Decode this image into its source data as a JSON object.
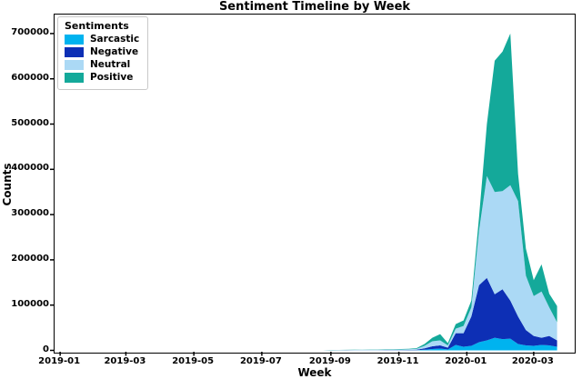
{
  "title": "Sentiment Timeline by Week",
  "legend": {
    "title": "Sentiments",
    "items": [
      {
        "label": "Sarcastic",
        "color": "#00b3ef"
      },
      {
        "label": "Negative",
        "color": "#0d2fb5"
      },
      {
        "label": "Neutral",
        "color": "#abd9f5"
      },
      {
        "label": "Positive",
        "color": "#14a99a"
      }
    ]
  },
  "axes": {
    "x_label": "Week",
    "y_label": "Counts",
    "x_ticks": [
      {
        "label": "2019-01",
        "day": 0
      },
      {
        "label": "2019-03",
        "day": 59
      },
      {
        "label": "2019-05",
        "day": 120
      },
      {
        "label": "2019-07",
        "day": 181
      },
      {
        "label": "2019-09",
        "day": 243
      },
      {
        "label": "2019-11",
        "day": 304
      },
      {
        "label": "2020-01",
        "day": 365
      },
      {
        "label": "2020-03",
        "day": 425
      }
    ],
    "y_ticks": [
      {
        "label": "0",
        "value": 0
      },
      {
        "label": "100000",
        "value": 100000
      },
      {
        "label": "200000",
        "value": 200000
      },
      {
        "label": "300000",
        "value": 300000
      },
      {
        "label": "400000",
        "value": 400000
      },
      {
        "label": "500000",
        "value": 500000
      },
      {
        "label": "600000",
        "value": 600000
      },
      {
        "label": "700000",
        "value": 700000
      }
    ],
    "x_range_days": [
      -5,
      461
    ],
    "y_range": [
      0,
      742000
    ]
  },
  "chart_data": {
    "type": "area",
    "stacked": true,
    "title": "Sentiment Timeline by Week",
    "xlabel": "Week",
    "ylabel": "Counts",
    "ylim": [
      0,
      742000
    ],
    "grid": false,
    "legend_position": "upper left",
    "x_start_date": "2019-01-06",
    "x_step_days": 7,
    "dates": [
      "2019-01-06",
      "2019-01-13",
      "2019-01-20",
      "2019-01-27",
      "2019-02-03",
      "2019-02-10",
      "2019-02-17",
      "2019-02-24",
      "2019-03-03",
      "2019-03-10",
      "2019-03-17",
      "2019-03-24",
      "2019-03-31",
      "2019-04-07",
      "2019-04-14",
      "2019-04-21",
      "2019-04-28",
      "2019-05-05",
      "2019-05-12",
      "2019-05-19",
      "2019-05-26",
      "2019-06-02",
      "2019-06-09",
      "2019-06-16",
      "2019-06-23",
      "2019-06-30",
      "2019-07-07",
      "2019-07-14",
      "2019-07-21",
      "2019-07-28",
      "2019-08-04",
      "2019-08-11",
      "2019-08-18",
      "2019-08-25",
      "2019-09-01",
      "2019-09-08",
      "2019-09-15",
      "2019-09-22",
      "2019-09-29",
      "2019-10-06",
      "2019-10-13",
      "2019-10-20",
      "2019-10-27",
      "2019-11-03",
      "2019-11-10",
      "2019-11-17",
      "2019-11-24",
      "2019-12-01",
      "2019-12-08",
      "2019-12-15",
      "2019-12-22",
      "2019-12-29",
      "2020-01-05",
      "2020-01-12",
      "2020-01-19",
      "2020-01-26",
      "2020-02-02",
      "2020-02-09",
      "2020-02-16",
      "2020-02-23",
      "2020-03-01",
      "2020-03-08",
      "2020-03-15",
      "2020-03-22"
    ],
    "series": [
      {
        "name": "Sarcastic",
        "color": "#00b3ef",
        "values": [
          0,
          0,
          0,
          0,
          0,
          0,
          0,
          0,
          0,
          0,
          0,
          0,
          0,
          0,
          0,
          0,
          0,
          0,
          0,
          0,
          0,
          0,
          0,
          0,
          0,
          0,
          0,
          0,
          0,
          0,
          0,
          0,
          0,
          0,
          100,
          100,
          100,
          150,
          150,
          200,
          200,
          250,
          250,
          300,
          350,
          500,
          1500,
          3000,
          4000,
          2000,
          12000,
          8000,
          10000,
          18000,
          22000,
          28000,
          25000,
          26000,
          14000,
          11000,
          10000,
          12000,
          11000,
          8000
        ]
      },
      {
        "name": "Negative",
        "color": "#0d2fb5",
        "values": [
          0,
          0,
          0,
          0,
          0,
          0,
          0,
          0,
          0,
          0,
          0,
          0,
          0,
          0,
          0,
          0,
          0,
          0,
          0,
          0,
          0,
          0,
          0,
          0,
          0,
          0,
          0,
          0,
          0,
          0,
          0,
          0,
          0,
          0,
          200,
          200,
          300,
          300,
          350,
          400,
          400,
          500,
          500,
          600,
          700,
          1000,
          3000,
          6000,
          7000,
          4000,
          26000,
          30000,
          65000,
          126000,
          138000,
          96000,
          110000,
          84000,
          61000,
          34000,
          22000,
          16000,
          21000,
          14000
        ]
      },
      {
        "name": "Neutral",
        "color": "#abd9f5",
        "values": [
          0,
          0,
          0,
          0,
          0,
          0,
          0,
          0,
          0,
          0,
          0,
          0,
          0,
          0,
          0,
          0,
          0,
          0,
          0,
          0,
          0,
          0,
          0,
          0,
          0,
          0,
          0,
          0,
          0,
          0,
          0,
          0,
          0,
          0,
          400,
          500,
          500,
          600,
          700,
          800,
          900,
          1000,
          1100,
          1200,
          1400,
          2000,
          5500,
          11000,
          11000,
          5000,
          10000,
          16000,
          20000,
          121000,
          225000,
          226000,
          217000,
          255000,
          255000,
          120000,
          88000,
          102000,
          63000,
          40000
        ]
      },
      {
        "name": "Positive",
        "color": "#14a99a",
        "values": [
          0,
          0,
          0,
          0,
          0,
          0,
          0,
          0,
          0,
          0,
          0,
          0,
          0,
          0,
          0,
          0,
          0,
          0,
          0,
          0,
          0,
          0,
          0,
          0,
          0,
          0,
          0,
          0,
          0,
          0,
          0,
          0,
          0,
          0,
          300,
          300,
          400,
          450,
          500,
          600,
          600,
          750,
          750,
          900,
          1050,
          1500,
          4000,
          8000,
          14000,
          5000,
          10000,
          12000,
          15000,
          30000,
          115000,
          290000,
          308000,
          335000,
          60000,
          60000,
          35000,
          60000,
          30000,
          36000
        ]
      }
    ]
  }
}
